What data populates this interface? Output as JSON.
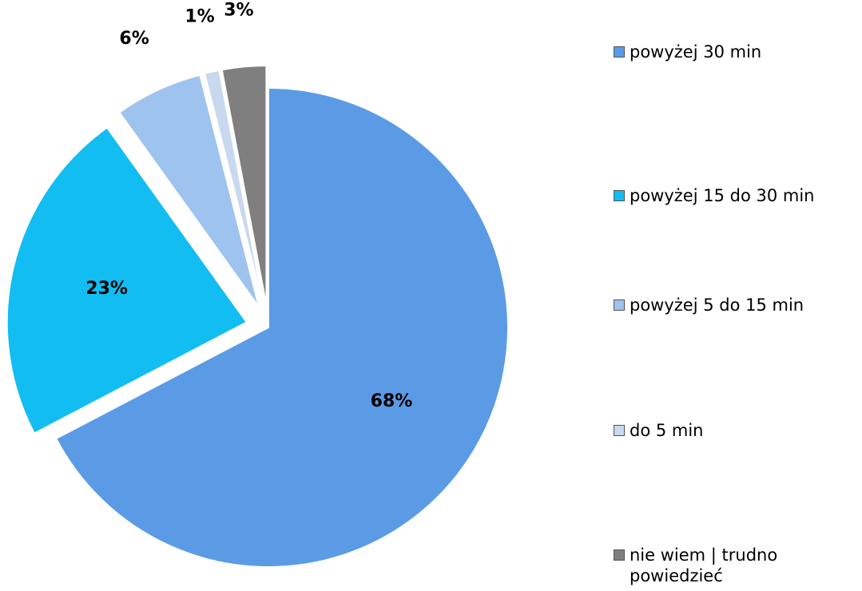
{
  "chart_data": {
    "type": "pie",
    "categories": [
      "powyżej 30 min",
      "powyżej 15 do 30 min",
      "powyżej 5 do 15 min",
      "do 5 min",
      "nie wiem | trudno powiedzieć"
    ],
    "values": [
      68,
      23,
      6,
      1,
      3
    ],
    "value_labels": [
      "68%",
      "23%",
      "6%",
      "1%",
      "3%"
    ],
    "colors": [
      "#5b9be6",
      "#12bdf2",
      "#9fc3ef",
      "#c8d9ef",
      "#7f7f7f"
    ],
    "legend": "right"
  }
}
